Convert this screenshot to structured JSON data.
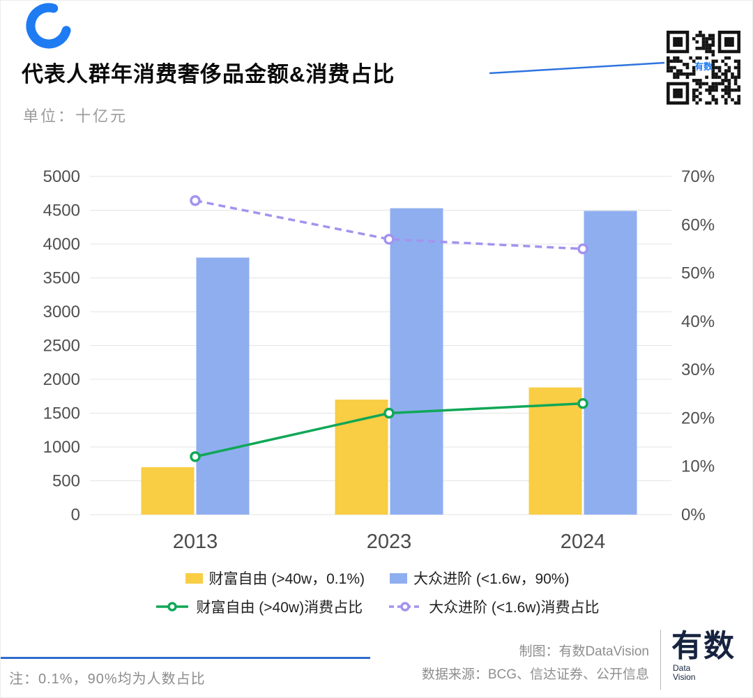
{
  "header": {
    "title": "代表人群年消费奢侈品金额&消费占比",
    "subtitle": "单位：十亿元"
  },
  "chart_data": {
    "type": "bar",
    "subtype": "combo-bar-line-dual-axis",
    "title": "代表人群年消费奢侈品金额&消费占比",
    "unit": "十亿元",
    "categories": [
      "2013",
      "2023",
      "2024"
    ],
    "bar_series": [
      {
        "name": "财富自由 (>40w，0.1%)",
        "color": "#F9CD44",
        "axis": "left",
        "values": [
          700,
          1700,
          1880
        ]
      },
      {
        "name": "大众进阶 (<1.6w，90%)",
        "color": "#8FAEF0",
        "axis": "left",
        "values": [
          3800,
          4530,
          4490
        ]
      }
    ],
    "line_series": [
      {
        "name": "财富自由 (>40w)消费占比",
        "color": "#10A757",
        "dashed": false,
        "axis": "right",
        "values": [
          12,
          21,
          23
        ]
      },
      {
        "name": "大众进阶 (<1.6w)消费占比",
        "color": "#A293EF",
        "dashed": true,
        "axis": "right",
        "values": [
          65,
          57,
          55
        ]
      }
    ],
    "left_axis": {
      "min": 0,
      "max": 5000,
      "step": 500
    },
    "right_axis": {
      "min": 0,
      "max": 70,
      "step": 10,
      "suffix": "%"
    },
    "grid": true,
    "legend_position": "bottom"
  },
  "footer": {
    "credit": "制图：有数DataVision",
    "source": "数据来源：BCG、信达证券、公开信息",
    "note": "注：0.1%，90%均为人数占比",
    "logo_main": "有数",
    "logo_sub1": "Data",
    "logo_sub2": "Vision"
  },
  "colors": {
    "accent_blue": "#1E7BF2",
    "note_rule_blue": "#2F6CCD",
    "grid_gray": "#E3E3E3"
  }
}
